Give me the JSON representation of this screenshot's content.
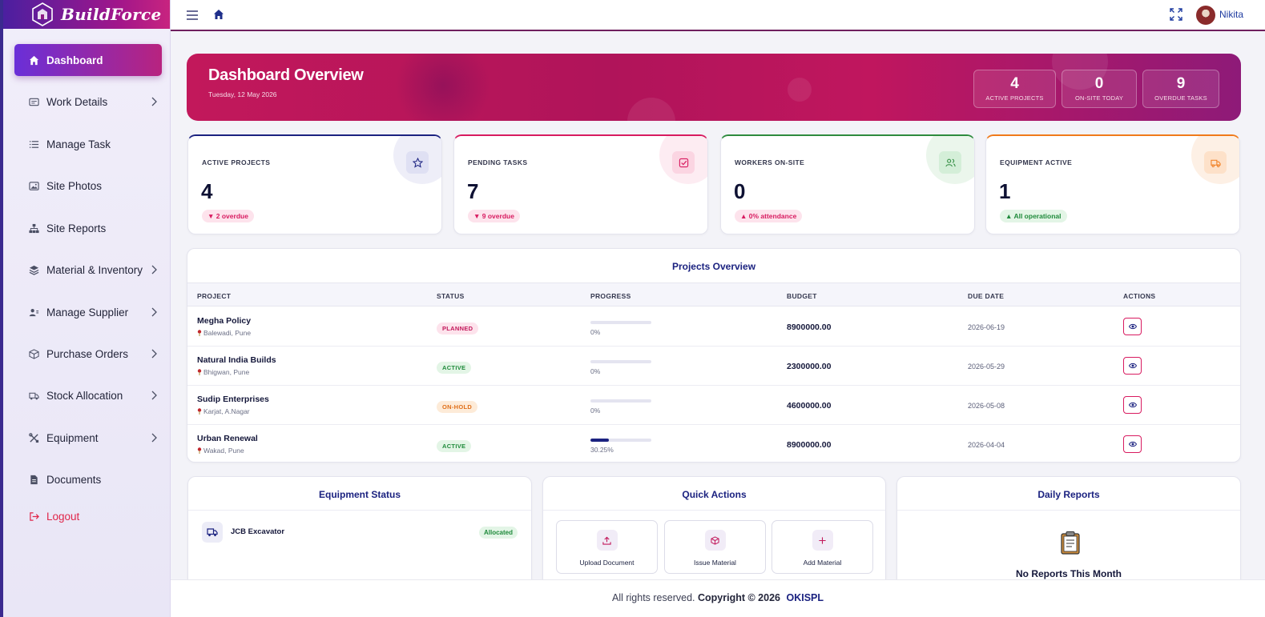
{
  "brand": {
    "name": "BuildForce"
  },
  "sidebar": {
    "items": [
      {
        "label": "Dashboard",
        "icon": "home-icon",
        "active": true
      },
      {
        "label": "Work Details",
        "icon": "card-icon",
        "has_submenu": true
      },
      {
        "label": "Manage Task",
        "icon": "list-icon"
      },
      {
        "label": "Site Photos",
        "icon": "photo-icon"
      },
      {
        "label": "Site Reports",
        "icon": "sitemap-icon"
      },
      {
        "label": "Material & Inventory",
        "icon": "layers-icon",
        "has_submenu": true
      },
      {
        "label": "Manage Supplier",
        "icon": "users-icon",
        "has_submenu": true
      },
      {
        "label": "Purchase Orders",
        "icon": "box-icon",
        "has_submenu": true
      },
      {
        "label": "Stock Allocation",
        "icon": "truck-icon",
        "has_submenu": true
      },
      {
        "label": "Equipment",
        "icon": "tools-icon",
        "has_submenu": true
      },
      {
        "label": "Documents",
        "icon": "document-icon"
      },
      {
        "label": "Logout",
        "icon": "logout-icon"
      }
    ]
  },
  "topbar": {
    "user_name": "Nikita"
  },
  "hero": {
    "title": "Dashboard Overview",
    "date": "Tuesday, 12 May 2026",
    "stats": [
      {
        "value": "4",
        "label": "ACTIVE PROJECTS"
      },
      {
        "value": "0",
        "label": "ON-SITE TODAY"
      },
      {
        "value": "9",
        "label": "OVERDUE TASKS"
      }
    ]
  },
  "cards": [
    {
      "label": "ACTIVE PROJECTS",
      "value": "4",
      "badge": "▼ 2 overdue",
      "accent": "#1b2280",
      "badge_color": "#d81b60",
      "badge_bg": "#fde3ec",
      "icon": "star-icon"
    },
    {
      "label": "PENDING TASKS",
      "value": "7",
      "badge": "▼ 9 overdue",
      "accent": "#d81b60",
      "badge_color": "#d81b60",
      "badge_bg": "#fde3ec",
      "icon": "checkbox-icon"
    },
    {
      "label": "WORKERS ON-SITE",
      "value": "0",
      "badge": "▲ 0% attendance",
      "accent": "#2e8b3e",
      "badge_color": "#d81b60",
      "badge_bg": "#fde3ec",
      "icon": "users-icon"
    },
    {
      "label": "EQUIPMENT ACTIVE",
      "value": "1",
      "badge": "▲ All operational",
      "accent": "#f07a1a",
      "badge_color": "#1f8a3b",
      "badge_bg": "#e3f5e6",
      "icon": "truck-icon"
    }
  ],
  "projects": {
    "title": "Projects Overview",
    "columns": [
      "PROJECT",
      "STATUS",
      "PROGRESS",
      "BUDGET",
      "DUE DATE",
      "ACTIONS"
    ],
    "rows": [
      {
        "name": "Megha Policy",
        "location": "Balewadi, Pune",
        "status": "PLANNED",
        "progress": 0,
        "progress_text": "0%",
        "budget": "8900000.00",
        "due": "2026-06-19"
      },
      {
        "name": "Natural India Builds",
        "location": "Bhigwan, Pune",
        "status": "ACTIVE",
        "progress": 0,
        "progress_text": "0%",
        "budget": "2300000.00",
        "due": "2026-05-29"
      },
      {
        "name": "Sudip Enterprises",
        "location": "Karjat, A.Nagar",
        "status": "ON-HOLD",
        "progress": 0,
        "progress_text": "0%",
        "budget": "4600000.00",
        "due": "2026-05-08"
      },
      {
        "name": "Urban Renewal",
        "location": "Wakad, Pune",
        "status": "ACTIVE",
        "progress": 30.25,
        "progress_text": "30.25%",
        "budget": "8900000.00",
        "due": "2026-04-04"
      }
    ]
  },
  "equipment": {
    "title": "Equipment Status",
    "items": [
      {
        "name": "JCB Excavator",
        "status": "Allocated"
      }
    ]
  },
  "quick_actions": {
    "title": "Quick Actions",
    "items": [
      {
        "label": "Upload Document",
        "icon": "upload-icon"
      },
      {
        "label": "Issue Material",
        "icon": "cube-icon"
      },
      {
        "label": "Add Material",
        "icon": "plus-icon"
      }
    ]
  },
  "daily_reports": {
    "title": "Daily Reports",
    "empty_text": "No Reports This Month"
  },
  "footer": {
    "text": "All rights reserved.",
    "copyright": "Copyright © 2026",
    "org": "OKISPL"
  }
}
